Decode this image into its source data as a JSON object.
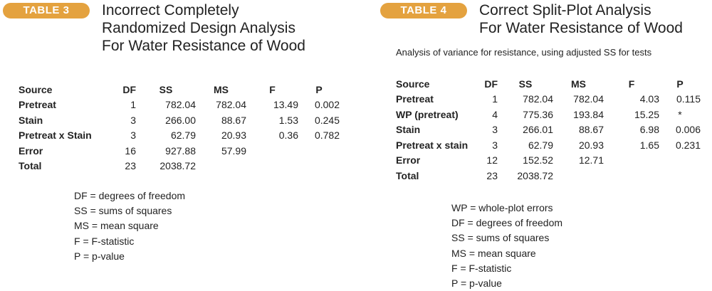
{
  "colors": {
    "badge": "#e4a23f",
    "text": "#222222",
    "background": "#ffffff"
  },
  "table3": {
    "badge": "TABLE 3",
    "title_lines": [
      "Incorrect Completely",
      "Randomized Design Analysis",
      "For Water Resistance of Wood"
    ],
    "columns": [
      "Source",
      "DF",
      "SS",
      "MS",
      "F",
      "P"
    ],
    "rows": [
      [
        "Pretreat",
        "1",
        "782.04",
        "782.04",
        "13.49",
        "0.002"
      ],
      [
        "Stain",
        "3",
        "266.00",
        "88.67",
        "1.53",
        "0.245"
      ],
      [
        "Pretreat x Stain",
        "3",
        "62.79",
        "20.93",
        "0.36",
        "0.782"
      ],
      [
        "Error",
        "16",
        "927.88",
        "57.99",
        "",
        ""
      ],
      [
        "Total",
        "23",
        "2038.72",
        "",
        "",
        ""
      ]
    ],
    "legend": [
      "DF = degrees of freedom",
      "SS = sums of squares",
      "MS = mean square",
      "F = F-statistic",
      "P = p-value"
    ]
  },
  "table4": {
    "badge": "TABLE 4",
    "title_lines": [
      "Correct Split-Plot Analysis",
      "For Water Resistance of Wood"
    ],
    "subtitle": "Analysis of variance for resistance, using adjusted SS for tests",
    "columns": [
      "Source",
      "DF",
      "SS",
      "MS",
      "F",
      "P"
    ],
    "rows": [
      [
        "Pretreat",
        "1",
        "782.04",
        "782.04",
        "4.03",
        "0.115"
      ],
      [
        "WP (pretreat)",
        "4",
        "775.36",
        "193.84",
        "15.25",
        "*"
      ],
      [
        "Stain",
        "3",
        "266.01",
        "88.67",
        "6.98",
        "0.006"
      ],
      [
        "Pretreat x stain",
        "3",
        "62.79",
        "20.93",
        "1.65",
        "0.231"
      ],
      [
        "Error",
        "12",
        "152.52",
        "12.71",
        "",
        ""
      ],
      [
        "Total",
        "23",
        "2038.72",
        "",
        "",
        ""
      ]
    ],
    "legend": [
      "WP = whole-plot errors",
      "DF = degrees of freedom",
      "SS = sums of squares",
      "MS = mean square",
      "F = F-statistic",
      "P = p-value"
    ]
  }
}
